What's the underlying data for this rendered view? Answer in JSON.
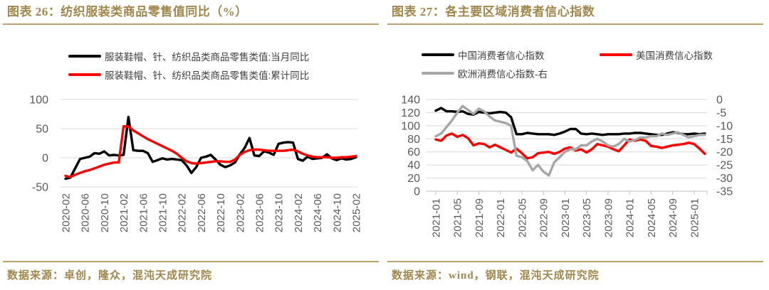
{
  "panels": [
    {
      "title": "图表 26：纺织服装类商品零售值同比（%）",
      "source": "数据来源：卓创，隆众，混沌天成研究院"
    },
    {
      "title": "图表 27：各主要区域消费者信心指数",
      "source": "数据来源：wind，钢联，混沌天成研究院"
    }
  ],
  "colors": {
    "gold_text": "#A1874B",
    "gold_rule": "#BCA268",
    "gridline": "#D9D9D9",
    "axis_line": "#BFBFBF",
    "tick_label": "#595959"
  },
  "chart_data": [
    {
      "type": "line",
      "title": "纺织服装类商品零售值同比（%）",
      "x": [
        "2020-02",
        "2020-03",
        "2020-04",
        "2020-05",
        "2020-06",
        "2020-07",
        "2020-08",
        "2020-09",
        "2020-10",
        "2020-11",
        "2020-12",
        "2021-01",
        "2021-02",
        "2021-03",
        "2021-04",
        "2021-05",
        "2021-06",
        "2021-07",
        "2021-08",
        "2021-09",
        "2021-10",
        "2021-11",
        "2021-12",
        "2022-01",
        "2022-02",
        "2022-03",
        "2022-04",
        "2022-05",
        "2022-06",
        "2022-07",
        "2022-08",
        "2022-09",
        "2022-10",
        "2022-11",
        "2022-12",
        "2023-01",
        "2023-02",
        "2023-03",
        "2023-04",
        "2023-05",
        "2023-06",
        "2023-07",
        "2023-08",
        "2023-09",
        "2023-10",
        "2023-11",
        "2023-12",
        "2024-01",
        "2024-02",
        "2024-03",
        "2024-04",
        "2024-05",
        "2024-06",
        "2024-07",
        "2024-08",
        "2024-09",
        "2024-10",
        "2024-11",
        "2024-12",
        "2025-01",
        "2025-02"
      ],
      "x_tick_every": 4,
      "x_tick_labels": [
        "2020-02",
        "2020-06",
        "2020-10",
        "2021-02",
        "2021-06",
        "2021-10",
        "2022-02",
        "2022-06",
        "2022-10",
        "2023-02",
        "2023-06",
        "2023-10",
        "2024-02",
        "2024-06",
        "2024-10",
        "2025-02"
      ],
      "ylim_left": [
        -50,
        100
      ],
      "yticks_left": [
        100,
        50,
        0,
        -50
      ],
      "grid": true,
      "legend_position": "top",
      "series": [
        {
          "name": "服装鞋帽、针、纺织品类商品零售类值:当月同比",
          "color": "#000000",
          "axis": "left",
          "values": [
            -36,
            -34,
            -18,
            -2,
            0,
            2,
            8,
            7,
            11,
            4,
            5,
            4,
            5,
            70,
            13,
            12,
            12,
            8,
            -7,
            -4,
            -1,
            -3,
            -2,
            -3,
            -4,
            -13,
            -26,
            -16,
            0,
            2,
            5,
            -3,
            -12,
            -16,
            -13,
            -8,
            6,
            17,
            34,
            4,
            3,
            11,
            9,
            5,
            24,
            26,
            27,
            26,
            -2,
            -5,
            2,
            -2,
            -1,
            0,
            6,
            -1,
            -4,
            -1,
            -3,
            -2,
            1
          ]
        },
        {
          "name": "服装鞋帽、针、纺织品类商品零售类值:累计同比",
          "color": "#FF0000",
          "axis": "left",
          "values": [
            -31,
            -33,
            -29,
            -26,
            -23,
            -21,
            -18,
            -15,
            -12,
            -10,
            -8,
            -8,
            54,
            54,
            47,
            42,
            37,
            32,
            28,
            24,
            20,
            16,
            12,
            7,
            0,
            -6,
            -9,
            -10,
            -9,
            -8,
            -7,
            -6,
            -6,
            -7,
            -7,
            -3,
            5,
            10,
            13,
            14,
            14,
            13,
            12,
            12,
            12,
            12,
            13,
            14,
            11,
            7,
            4,
            2,
            1,
            1,
            1,
            0,
            0,
            1,
            1,
            2,
            3
          ]
        }
      ]
    },
    {
      "type": "line",
      "title": "各主要区域消费者信心指数",
      "x": [
        "2021-01",
        "2021-02",
        "2021-03",
        "2021-04",
        "2021-05",
        "2021-06",
        "2021-07",
        "2021-08",
        "2021-09",
        "2021-10",
        "2021-11",
        "2021-12",
        "2022-01",
        "2022-02",
        "2022-03",
        "2022-04",
        "2022-05",
        "2022-06",
        "2022-07",
        "2022-08",
        "2022-09",
        "2022-10",
        "2022-11",
        "2022-12",
        "2023-01",
        "2023-02",
        "2023-03",
        "2023-04",
        "2023-05",
        "2023-06",
        "2023-07",
        "2023-08",
        "2023-09",
        "2023-10",
        "2023-11",
        "2023-12",
        "2024-01",
        "2024-02",
        "2024-03",
        "2024-04",
        "2024-05",
        "2024-06",
        "2024-07",
        "2024-08",
        "2024-09",
        "2024-10",
        "2024-11",
        "2024-12",
        "2025-01",
        "2025-02",
        "2025-03"
      ],
      "x_tick_every": 4,
      "x_tick_labels": [
        "2021-01",
        "2021-05",
        "2021-09",
        "2022-01",
        "2022-05",
        "2022-09",
        "2023-01",
        "2023-05",
        "2023-09",
        "2024-01",
        "2024-05",
        "2024-09",
        "2025-01"
      ],
      "ylim_left": [
        0,
        140
      ],
      "yticks_left": [
        140,
        120,
        100,
        80,
        60,
        40,
        20,
        0
      ],
      "ylim_right": [
        -35,
        0
      ],
      "yticks_right": [
        0,
        -5,
        -10,
        -15,
        -20,
        -25,
        -30,
        -35
      ],
      "grid": true,
      "legend_position": "top",
      "series": [
        {
          "name": "中国消费者信心指数",
          "color": "#000000",
          "axis": "left",
          "values": [
            123,
            127,
            122,
            122,
            121,
            122,
            118,
            117,
            121,
            120,
            119,
            120,
            121,
            120,
            113,
            87,
            87,
            89,
            88,
            87,
            87,
            87,
            86,
            88,
            91,
            95,
            95,
            88,
            87,
            88,
            87,
            86,
            87,
            87,
            87,
            88,
            88,
            89,
            89,
            88,
            87,
            86,
            86,
            88,
            90,
            89,
            87,
            87,
            88,
            87,
            88
          ]
        },
        {
          "name": "美国消费信心指数",
          "color": "#FF0000",
          "axis": "left",
          "values": [
            79,
            77,
            85,
            88,
            83,
            86,
            81,
            70,
            73,
            72,
            67,
            71,
            67,
            63,
            59,
            65,
            58,
            50,
            52,
            58,
            59,
            60,
            57,
            60,
            65,
            67,
            62,
            64,
            59,
            64,
            72,
            70,
            68,
            64,
            61,
            70,
            79,
            77,
            79,
            77,
            69,
            68,
            66,
            68,
            70,
            71,
            72,
            74,
            72,
            65,
            57
          ]
        },
        {
          "name": "欧洲消费信心指数-右",
          "color": "#A6A6A6",
          "axis": "right",
          "values": [
            -14.0,
            -13.0,
            -10.5,
            -8.0,
            -5.0,
            -2.5,
            -4.0,
            -5.5,
            -3.5,
            -4.5,
            -6.5,
            -8.0,
            -8.5,
            -9.0,
            -10.0,
            -21.5,
            -22.0,
            -23.5,
            -27.0,
            -25.0,
            -27.5,
            -29.0,
            -24.0,
            -22.0,
            -20.0,
            -19.0,
            -19.0,
            -17.5,
            -17.5,
            -16.0,
            -15.0,
            -16.0,
            -17.5,
            -18.0,
            -17.0,
            -15.0,
            -16.0,
            -15.5,
            -14.5,
            -14.5,
            -14.0,
            -14.0,
            -13.0,
            -13.5,
            -13.0,
            -12.5,
            -13.5,
            -14.5,
            -14.0,
            -13.5,
            -13.5
          ]
        }
      ]
    }
  ]
}
